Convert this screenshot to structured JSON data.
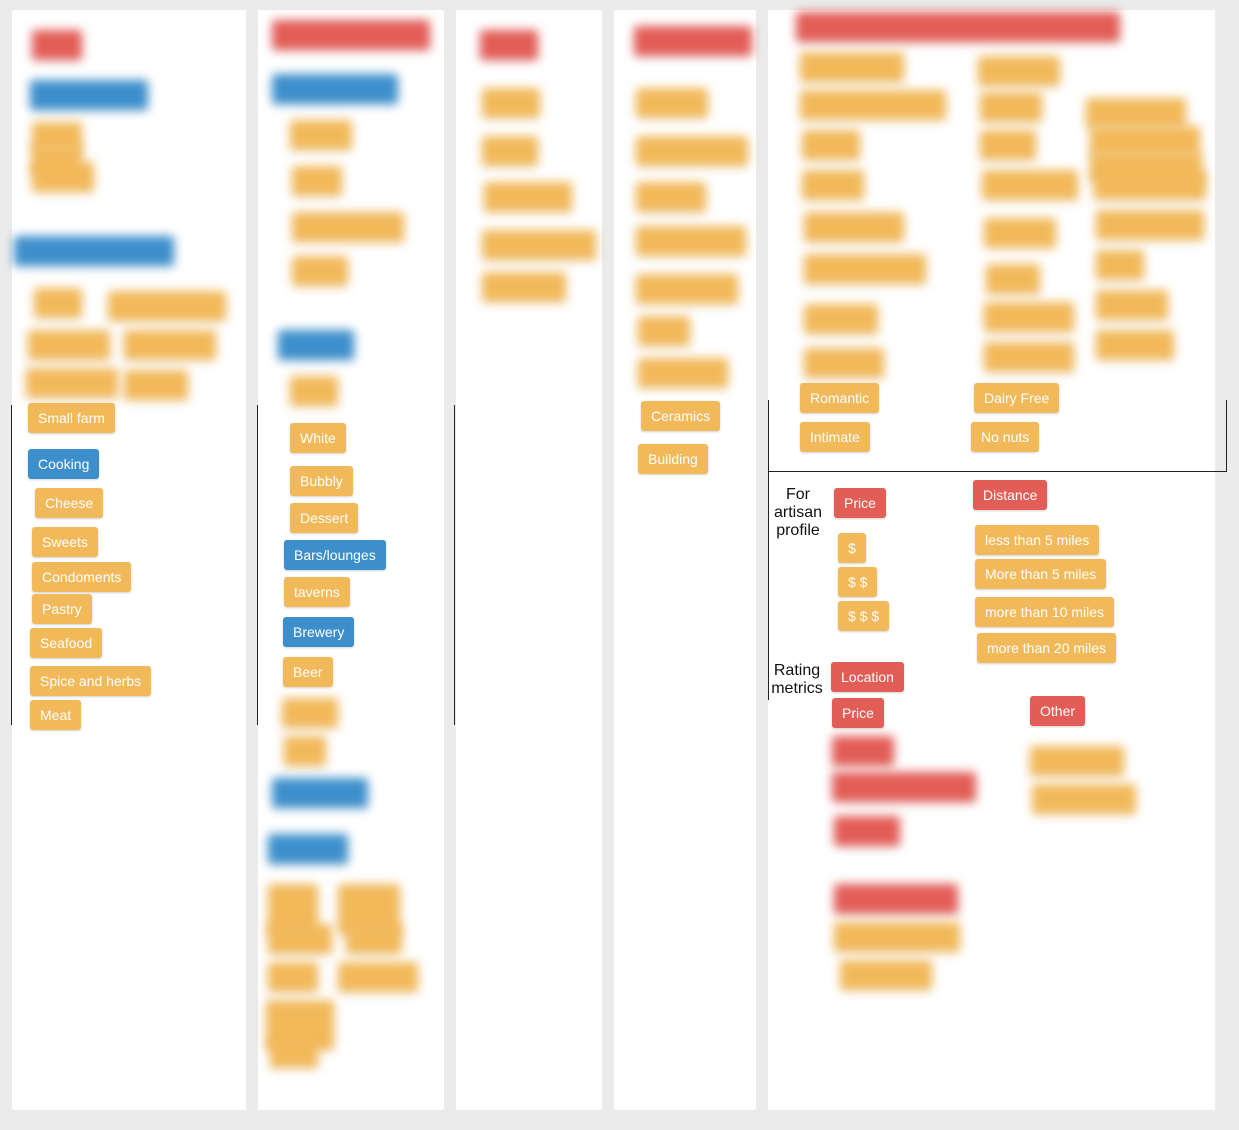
{
  "columns": {
    "col1": {
      "sourcing_tags": [
        "Small farm"
      ],
      "cooking_header": "Cooking",
      "cooking_tags": [
        "Cheese",
        "Sweets",
        "Condoments",
        "Pastry",
        "Seafood",
        "Spice and herbs",
        "Meat"
      ]
    },
    "col2": {
      "drink_tags": [
        "White",
        "Bubbly",
        "Dessert"
      ],
      "bars_header": "Bars/lounges",
      "bars_tags": [
        "taverns"
      ],
      "brewery_header": "Brewery",
      "brewery_tags": [
        "Beer"
      ]
    },
    "col4": {
      "craft_tags": [
        "Ceramics",
        "Building"
      ]
    },
    "col5": {
      "mood_tags": [
        "Romantic",
        "Intimate"
      ],
      "diet_tags": [
        "Dairy Free",
        "No nuts"
      ],
      "artisan_label": "For artisan profile",
      "price_header": "Price",
      "price_tags": [
        "$",
        "$ $",
        "$ $ $"
      ],
      "distance_header": "Distance",
      "distance_tags": [
        "less than 5 miles",
        "More than 5 miles",
        "more than 10 miles",
        "more than 20 miles"
      ],
      "rating_label": "Rating metrics",
      "rating_tags": [
        "Location",
        "Price"
      ],
      "other_header": "Other"
    }
  },
  "colors": {
    "orange": "#f2b95a",
    "blue": "#3d8fcc",
    "red": "#e35d57"
  }
}
